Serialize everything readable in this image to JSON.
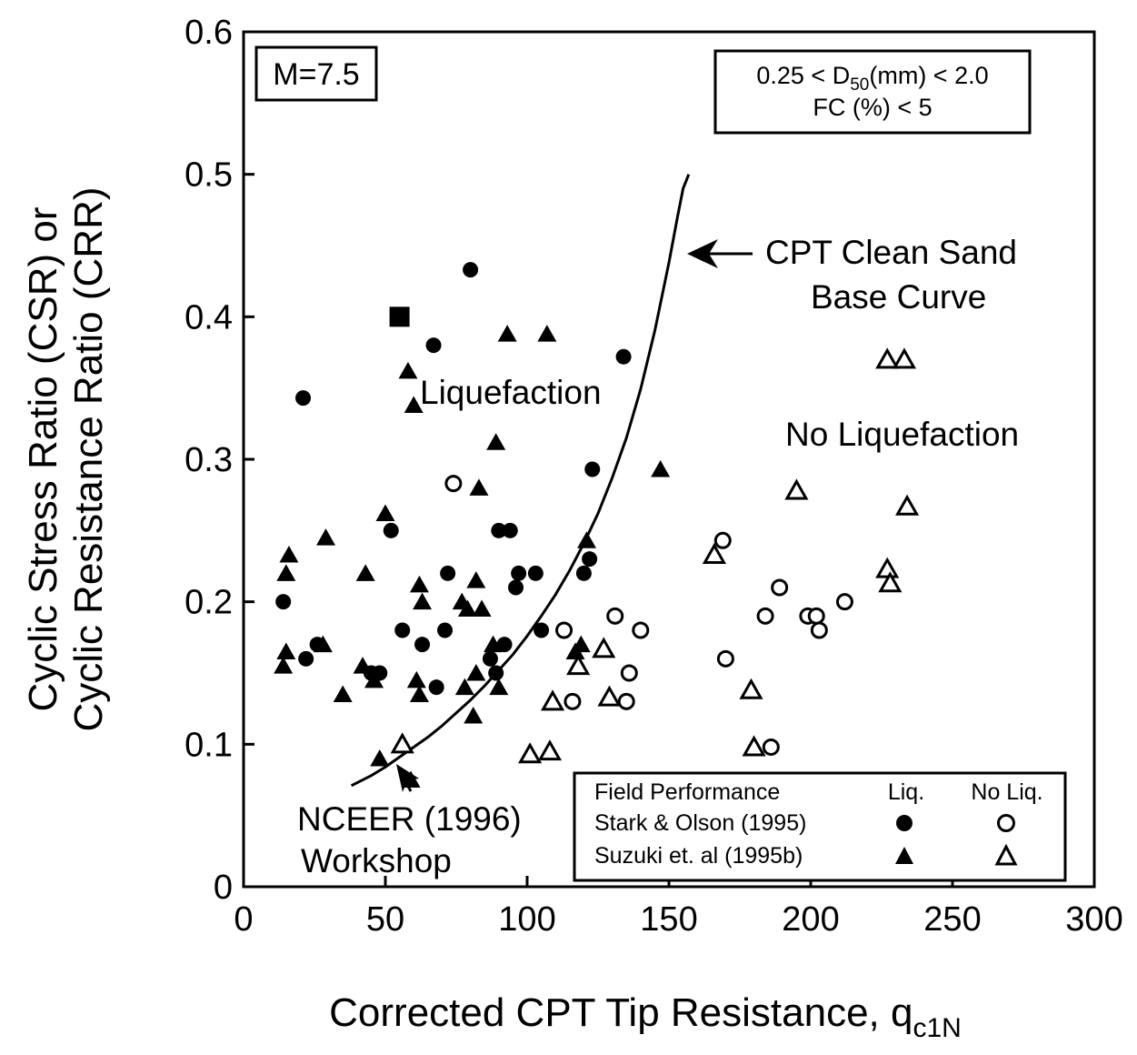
{
  "chart_data": {
    "type": "scatter",
    "xlim": [
      0,
      300
    ],
    "ylim": [
      0,
      0.6
    ],
    "x_ticks": [
      0,
      50,
      100,
      150,
      200,
      250,
      300
    ],
    "x_tick_labels": [
      "0",
      "50",
      "100",
      "150",
      "200",
      "250",
      "300"
    ],
    "y_ticks": [
      0,
      0.1,
      0.2,
      0.3,
      0.4,
      0.5,
      0.6
    ],
    "y_tick_labels": [
      "0",
      "0.1",
      "0.2",
      "0.3",
      "0.4",
      "0.5",
      "0.6"
    ],
    "xlabel_main": "Corrected CPT Tip Resistance, q",
    "xlabel_sub": "c1N",
    "ylabel_line1": "Cyclic Stress Ratio (CSR) or",
    "ylabel_line2": "Cyclic Resistance Ratio (CRR)",
    "grid": false,
    "magnitude_label": "M=7.5",
    "condition_box": {
      "line1_pre": "0.25 < D",
      "line1_sub": "50",
      "line1_post": "(mm) < 2.0",
      "line2": "FC (%) < 5"
    },
    "region_labels": {
      "liquefaction": "Liquefaction",
      "no_liquefaction": "No Liquefaction"
    },
    "curve_label": {
      "line1": "CPT Clean Sand",
      "line2": "Base Curve"
    },
    "workshop_label": {
      "line1": "NCEER (1996)",
      "line2": "Workshop"
    },
    "base_curve": {
      "x": [
        38,
        45,
        50,
        55,
        60,
        65,
        70,
        75,
        80,
        85,
        90,
        95,
        100,
        105,
        110,
        115,
        120,
        125,
        130,
        135,
        140,
        145,
        150,
        153,
        155,
        157
      ],
      "y": [
        0.071,
        0.078,
        0.084,
        0.091,
        0.098,
        0.105,
        0.113,
        0.122,
        0.131,
        0.141,
        0.152,
        0.163,
        0.176,
        0.19,
        0.205,
        0.222,
        0.241,
        0.262,
        0.287,
        0.315,
        0.349,
        0.39,
        0.438,
        0.47,
        0.49,
        0.5
      ]
    },
    "legend": {
      "title": "Field Performance",
      "col_liq": "Liq.",
      "col_noliq": "No Liq.",
      "rows": [
        "Stark & Olson (1995)",
        "Suzuki et. al (1995b)"
      ]
    },
    "series": [
      {
        "name": "Stark & Olson (1995)",
        "outcome": "Liq.",
        "marker": "filled-circle",
        "points": [
          [
            14,
            0.2
          ],
          [
            21,
            0.343
          ],
          [
            22,
            0.16
          ],
          [
            26,
            0.17
          ],
          [
            45,
            0.15
          ],
          [
            48,
            0.15
          ],
          [
            52,
            0.25
          ],
          [
            56,
            0.18
          ],
          [
            63,
            0.17
          ],
          [
            67,
            0.38
          ],
          [
            68,
            0.14
          ],
          [
            71,
            0.18
          ],
          [
            72,
            0.22
          ],
          [
            80,
            0.433
          ],
          [
            87,
            0.16
          ],
          [
            89,
            0.15
          ],
          [
            90,
            0.25
          ],
          [
            92,
            0.17
          ],
          [
            94,
            0.25
          ],
          [
            96,
            0.21
          ],
          [
            97,
            0.22
          ],
          [
            103,
            0.22
          ],
          [
            105,
            0.18
          ],
          [
            120,
            0.22
          ],
          [
            122,
            0.23
          ],
          [
            123,
            0.293
          ],
          [
            134,
            0.372
          ]
        ]
      },
      {
        "name": "Stark & Olson (1995)",
        "outcome": "No Liq.",
        "marker": "open-circle",
        "points": [
          [
            74,
            0.283
          ],
          [
            113,
            0.18
          ],
          [
            116,
            0.13
          ],
          [
            131,
            0.19
          ],
          [
            135,
            0.13
          ],
          [
            136,
            0.15
          ],
          [
            140,
            0.18
          ],
          [
            169,
            0.243
          ],
          [
            170,
            0.16
          ],
          [
            184,
            0.19
          ],
          [
            186,
            0.098
          ],
          [
            189,
            0.21
          ],
          [
            199,
            0.19
          ],
          [
            202,
            0.19
          ],
          [
            203,
            0.18
          ],
          [
            212,
            0.2
          ]
        ]
      },
      {
        "name": "Suzuki et. al (1995b)",
        "outcome": "Liq.",
        "marker": "filled-triangle",
        "points": [
          [
            14,
            0.155
          ],
          [
            15,
            0.165
          ],
          [
            15,
            0.22
          ],
          [
            16,
            0.233
          ],
          [
            28,
            0.17
          ],
          [
            29,
            0.245
          ],
          [
            35,
            0.135
          ],
          [
            42,
            0.155
          ],
          [
            43,
            0.22
          ],
          [
            46,
            0.145
          ],
          [
            48,
            0.09
          ],
          [
            50,
            0.262
          ],
          [
            58,
            0.362
          ],
          [
            59,
            0.075
          ],
          [
            60,
            0.338
          ],
          [
            61,
            0.145
          ],
          [
            62,
            0.212
          ],
          [
            62,
            0.135
          ],
          [
            63,
            0.2
          ],
          [
            77,
            0.2
          ],
          [
            78,
            0.14
          ],
          [
            79,
            0.195
          ],
          [
            81,
            0.12
          ],
          [
            82,
            0.15
          ],
          [
            82,
            0.215
          ],
          [
            83,
            0.28
          ],
          [
            84,
            0.195
          ],
          [
            88,
            0.17
          ],
          [
            89,
            0.312
          ],
          [
            90,
            0.14
          ],
          [
            93,
            0.388
          ],
          [
            107,
            0.388
          ],
          [
            117,
            0.165
          ],
          [
            118,
            0.155
          ],
          [
            119,
            0.17
          ],
          [
            121,
            0.243
          ],
          [
            147,
            0.293
          ]
        ]
      },
      {
        "name": "Suzuki et. al (1995b)",
        "outcome": "No Liq.",
        "marker": "open-triangle",
        "points": [
          [
            56,
            0.1
          ],
          [
            101,
            0.093
          ],
          [
            108,
            0.095
          ],
          [
            109,
            0.13
          ],
          [
            118,
            0.155
          ],
          [
            127,
            0.167
          ],
          [
            129,
            0.133
          ],
          [
            166,
            0.233
          ],
          [
            179,
            0.138
          ],
          [
            180,
            0.098
          ],
          [
            195,
            0.278
          ],
          [
            227,
            0.37
          ],
          [
            227,
            0.223
          ],
          [
            228,
            0.213
          ],
          [
            233,
            0.37
          ],
          [
            234,
            0.267
          ]
        ]
      },
      {
        "name": "",
        "outcome": "",
        "marker": "filled-square",
        "points": [
          [
            55,
            0.4
          ]
        ]
      }
    ]
  }
}
